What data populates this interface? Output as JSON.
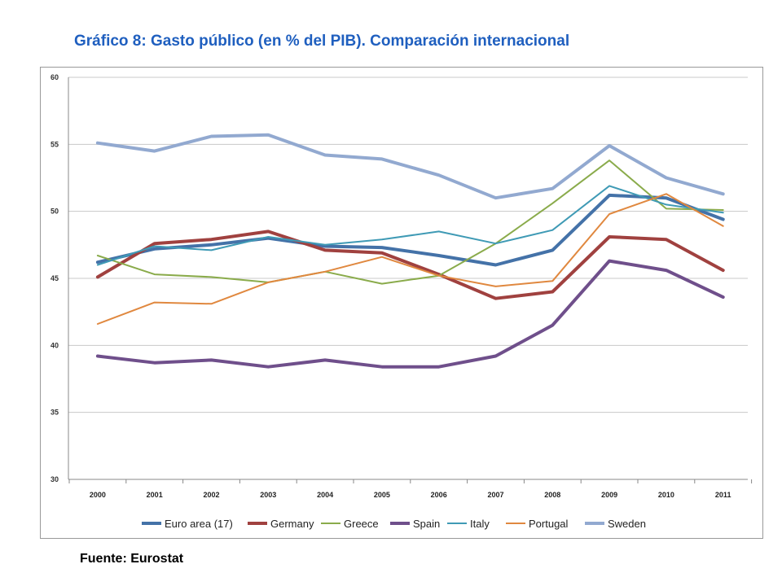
{
  "title": "Gráfico 8: Gasto público (en % del PIB). Comparación internacional",
  "source": "Fuente: Eurostat",
  "chart_data": {
    "type": "line",
    "title": "Gráfico 8: Gasto público (en % del PIB). Comparación internacional",
    "xlabel": "",
    "ylabel": "",
    "x": [
      "2000",
      "2001",
      "2002",
      "2003",
      "2004",
      "2005",
      "2006",
      "2007",
      "2008",
      "2009",
      "2010",
      "2011"
    ],
    "ylim": [
      30,
      60
    ],
    "yticks": [
      "30",
      "35",
      "40",
      "45",
      "50",
      "55",
      "60"
    ],
    "grid": "horizontal",
    "legend_position": "bottom",
    "series": [
      {
        "name": "Euro area (17)",
        "color": "#4472a8",
        "width": 4,
        "values": [
          46.2,
          47.2,
          47.5,
          48.0,
          47.4,
          47.3,
          46.7,
          46.0,
          47.1,
          51.2,
          51.0,
          49.4
        ]
      },
      {
        "name": "Germany",
        "color": "#a0413f",
        "width": 4,
        "values": [
          45.1,
          47.6,
          47.9,
          48.5,
          47.1,
          46.9,
          45.3,
          43.5,
          44.0,
          48.1,
          47.9,
          45.6
        ]
      },
      {
        "name": "Greece",
        "color": "#8aab4b",
        "width": 2,
        "values": [
          46.7,
          45.3,
          45.1,
          44.7,
          45.5,
          44.6,
          45.2,
          47.6,
          50.6,
          53.8,
          50.2,
          50.1
        ]
      },
      {
        "name": "Spain",
        "color": "#6f4f8b",
        "width": 4,
        "values": [
          39.2,
          38.7,
          38.9,
          38.4,
          38.9,
          38.4,
          38.4,
          39.2,
          41.5,
          46.3,
          45.6,
          43.6
        ]
      },
      {
        "name": "Italy",
        "color": "#3f9ab5",
        "width": 2,
        "values": [
          46.0,
          47.4,
          47.1,
          48.1,
          47.5,
          47.9,
          48.5,
          47.6,
          48.6,
          51.9,
          50.5,
          49.9
        ]
      },
      {
        "name": "Portugal",
        "color": "#e0883f",
        "width": 2,
        "values": [
          41.6,
          43.2,
          43.1,
          44.7,
          45.5,
          46.6,
          45.2,
          44.4,
          44.8,
          49.8,
          51.3,
          48.9
        ]
      },
      {
        "name": "Sweden",
        "color": "#92a9d0",
        "width": 4,
        "values": [
          55.1,
          54.5,
          55.6,
          55.7,
          54.2,
          53.9,
          52.7,
          51.0,
          51.7,
          54.9,
          52.5,
          51.3
        ]
      }
    ]
  }
}
